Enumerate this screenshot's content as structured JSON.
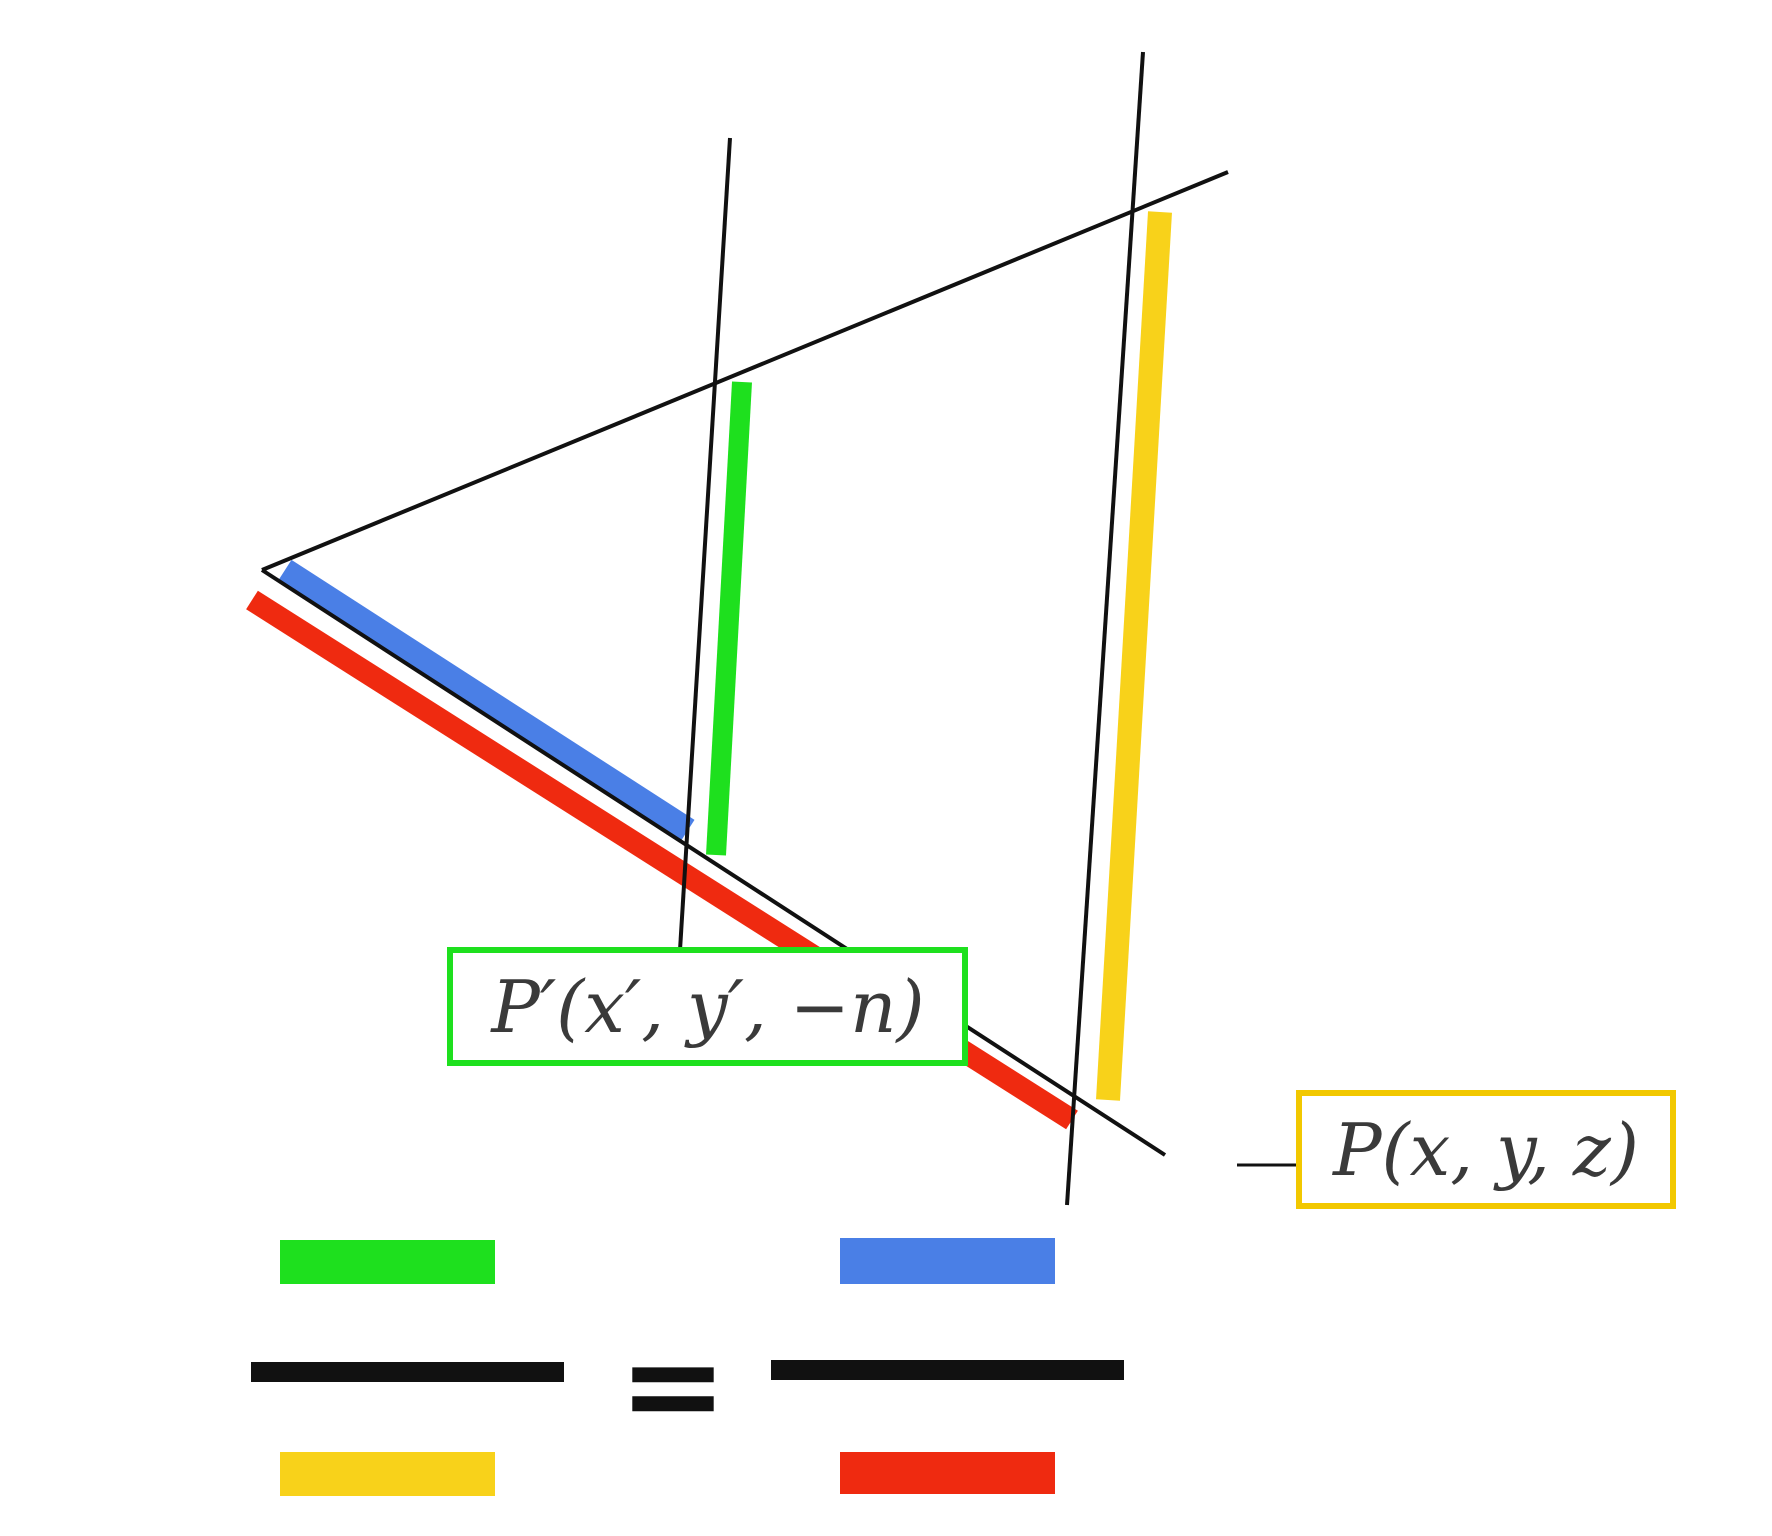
{
  "labels": {
    "projected_point": "P′(x′, y′, −n)",
    "original_point": "P(x, y, z)"
  },
  "equation": {
    "equals_sign": "="
  },
  "colors": {
    "green_segment": "#1ee01e",
    "blue_segment": "#4a7fe6",
    "red_segment": "#ef2a10",
    "yellow_segment": "#f8d21a",
    "green_box": "#1ee01e",
    "yellow_box": "#f2c800",
    "lines": "#111111"
  }
}
